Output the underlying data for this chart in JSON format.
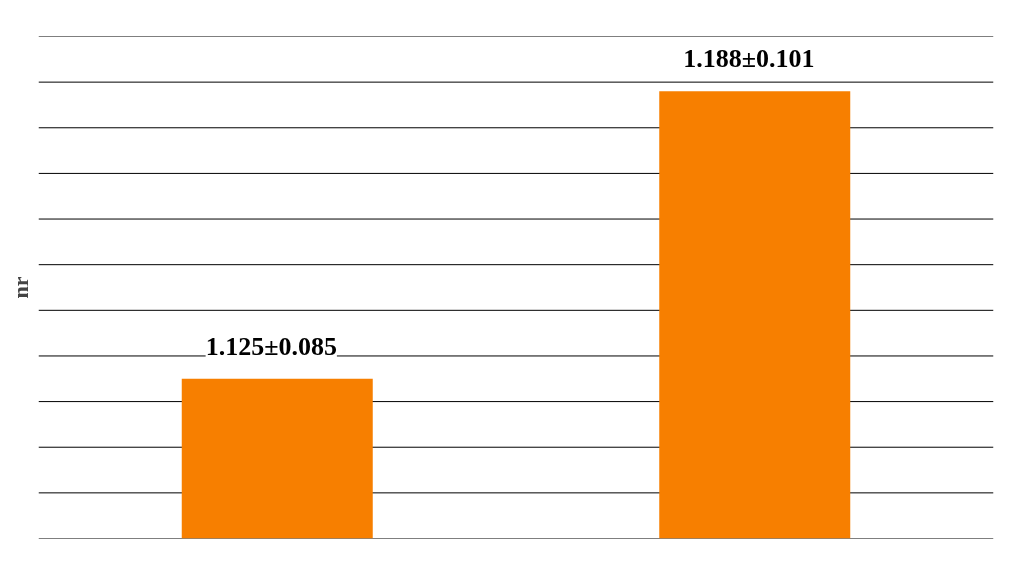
{
  "chart_data": {
    "type": "bar",
    "ylabel": "nr",
    "categories": [
      null,
      null
    ],
    "values": [
      1.125,
      1.188
    ],
    "value_labels": [
      "1.125±0.085",
      "1.188±0.101"
    ],
    "color": "#f77f00",
    "ylim": [
      1.09,
      1.2
    ],
    "yticks": [
      {
        "value": 1.09,
        "label": null
      },
      {
        "value": 1.1,
        "label": null
      },
      {
        "value": 1.11,
        "label": null
      },
      {
        "value": 1.12,
        "label": null
      },
      {
        "value": 1.13,
        "label": null
      },
      {
        "value": 1.14,
        "label": null
      },
      {
        "value": 1.15,
        "label": null
      },
      {
        "value": 1.16,
        "label": null
      },
      {
        "value": 1.17,
        "label": null
      },
      {
        "value": 1.18,
        "label": null
      },
      {
        "value": 1.19,
        "label": null
      },
      {
        "value": 1.2,
        "label": null
      }
    ],
    "grid": "y"
  }
}
